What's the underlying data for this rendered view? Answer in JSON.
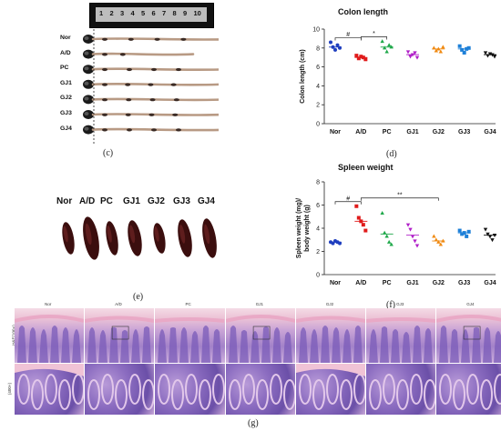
{
  "panel_c": {
    "ruler_numbers": [
      "1",
      "2",
      "3",
      "4",
      "5",
      "6",
      "7",
      "8",
      "9",
      "10"
    ],
    "groups": [
      "Nor",
      "A/D",
      "PC",
      "GJ1",
      "GJ2",
      "GJ3",
      "GJ4"
    ],
    "letter": "(c)"
  },
  "panel_e": {
    "groups": [
      "Nor",
      "A/D",
      "PC",
      "GJ1",
      "GJ2",
      "GJ3",
      "GJ4"
    ],
    "letter": "(e)"
  },
  "panel_g": {
    "groups": [
      "Nor",
      "A/D",
      "PC",
      "GJ1",
      "GJ2",
      "GJ3",
      "GJ4"
    ],
    "row_labels": [
      "H&E(100×)",
      "(400×)"
    ],
    "letter": "(g)"
  },
  "colors": {
    "Nor": "#1f3fbf",
    "A/D": "#e01b1b",
    "PC": "#1fa84a",
    "GJ1": "#b01fc8",
    "GJ2": "#f08a12",
    "GJ3": "#1e80d8",
    "GJ4": "#111111"
  },
  "chart_data": [
    {
      "type": "scatter",
      "title": "Colon length",
      "ylabel": "Colon length (cm)",
      "categories": [
        "Nor",
        "A/D",
        "PC",
        "GJ1",
        "GJ2",
        "GJ3",
        "GJ4"
      ],
      "ylim": [
        0,
        10
      ],
      "yticks": [
        0,
        2,
        4,
        6,
        8,
        10
      ],
      "points": [
        [
          8.6,
          8.1,
          7.8,
          8.3,
          8.0
        ],
        [
          7.2,
          6.9,
          7.1,
          7.0,
          6.8
        ],
        [
          8.7,
          8.0,
          7.6,
          8.3,
          8.1
        ],
        [
          7.6,
          7.1,
          7.3,
          7.5,
          7.0
        ],
        [
          8.0,
          7.7,
          7.9,
          7.6,
          8.1
        ],
        [
          8.2,
          7.8,
          7.5,
          7.9,
          8.0
        ],
        [
          7.5,
          7.2,
          7.4,
          7.3,
          7.1
        ]
      ],
      "means": [
        8.1,
        7.0,
        8.1,
        7.3,
        7.9,
        7.9,
        7.3
      ],
      "annotations": [
        {
          "from": "Nor",
          "to": "A/D",
          "label": "#"
        },
        {
          "from": "A/D",
          "to": "PC",
          "label": "*"
        }
      ],
      "letter": "(d)"
    },
    {
      "type": "scatter",
      "title": "Spleen weight",
      "ylabel": "Spleen weight (mg)/ body weight (g)",
      "categories": [
        "Nor",
        "A/D",
        "PC",
        "GJ1",
        "GJ2",
        "GJ3",
        "GJ4"
      ],
      "ylim": [
        0,
        8
      ],
      "yticks": [
        0,
        2,
        4,
        6,
        8
      ],
      "points": [
        [
          2.8,
          2.7,
          2.9,
          2.8,
          2.7
        ],
        [
          5.9,
          4.9,
          4.6,
          4.3,
          3.8
        ],
        [
          5.3,
          3.6,
          3.3,
          2.8,
          2.6
        ],
        [
          4.3,
          3.9,
          3.3,
          2.9,
          2.5
        ],
        [
          3.3,
          3.0,
          2.8,
          2.6,
          2.9
        ],
        [
          3.8,
          3.5,
          3.6,
          3.3,
          3.7
        ],
        [
          3.9,
          3.5,
          3.3,
          3.0,
          3.4
        ]
      ],
      "means": [
        2.8,
        4.6,
        3.5,
        3.4,
        2.9,
        3.6,
        3.4
      ],
      "annotations": [
        {
          "from": "Nor",
          "to": "A/D",
          "label": "#"
        },
        {
          "from": "A/D",
          "to": "GJ2",
          "label": "**"
        }
      ],
      "letter": "(f)"
    }
  ]
}
